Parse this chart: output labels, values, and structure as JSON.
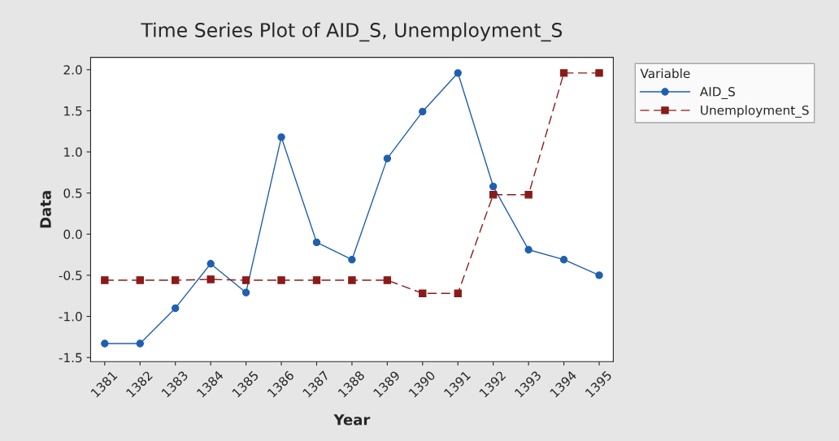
{
  "chart_data": {
    "type": "line",
    "title": "Time Series Plot of AID_S, Unemployment_S",
    "xlabel": "Year",
    "ylabel": "Data",
    "legend_title": "Variable",
    "categories": [
      "1381",
      "1382",
      "1383",
      "1384",
      "1385",
      "1386",
      "1387",
      "1388",
      "1389",
      "1390",
      "1391",
      "1392",
      "1393",
      "1394",
      "1395"
    ],
    "series": [
      {
        "name": "AID_S",
        "color": "#1f5fae",
        "marker": "circle",
        "line_style": "solid",
        "values": [
          -1.33,
          -1.33,
          -0.9,
          -0.36,
          -0.71,
          1.18,
          -0.1,
          -0.31,
          0.92,
          1.49,
          1.96,
          0.58,
          -0.19,
          -0.31,
          -0.5
        ]
      },
      {
        "name": "Unemployment_S",
        "color": "#8b1a1a",
        "marker": "square",
        "line_style": "dashed",
        "values": [
          -0.56,
          -0.56,
          -0.56,
          -0.55,
          -0.56,
          -0.56,
          -0.56,
          -0.56,
          -0.56,
          -0.72,
          -0.72,
          0.48,
          0.48,
          1.96,
          1.96
        ]
      }
    ],
    "ylim": [
      -1.55,
      2.15
    ],
    "yticks": [
      {
        "value": -1.5,
        "label": "-1.5"
      },
      {
        "value": -1.0,
        "label": "-1.0"
      },
      {
        "value": -0.5,
        "label": "-0.5"
      },
      {
        "value": 0.0,
        "label": "0.0"
      },
      {
        "value": 0.5,
        "label": "0.5"
      },
      {
        "value": 1.0,
        "label": "1.0"
      },
      {
        "value": 1.5,
        "label": "1.5"
      },
      {
        "value": 2.0,
        "label": "2.0"
      }
    ],
    "grid": false,
    "legend": "top right"
  }
}
